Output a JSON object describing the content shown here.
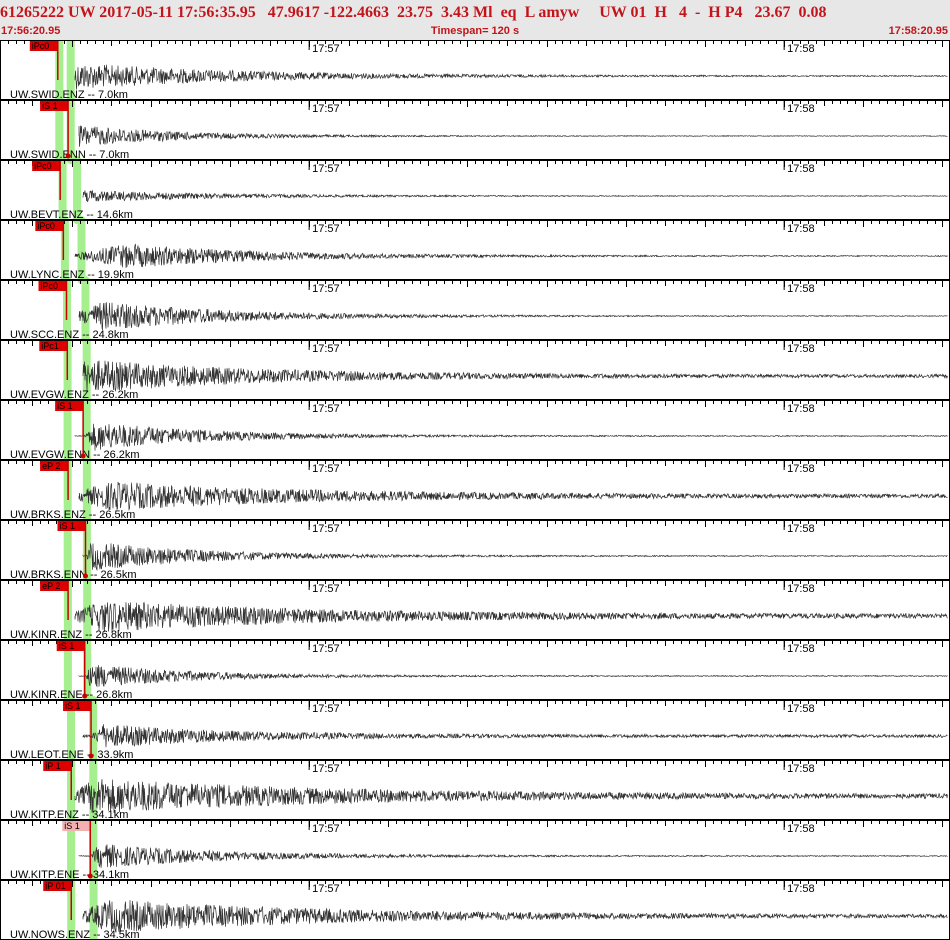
{
  "header": {
    "title": "61265222 UW 2017-05-11 17:56:35.95   47.9617 -122.4663  23.75  3.43 Ml  eq  L amyw     UW 01  H   4  -  H P4   23.67  0.08",
    "start_time": "17:56:20.95",
    "timespan": "Timespan= 120 s",
    "end_time": "17:58:20.95"
  },
  "colors": {
    "trace": "#333333",
    "pick_fill": "#dd0000",
    "pick_selected_fill": "#f2b0b0",
    "pick_line": "#c80000",
    "travel_time_band": "#a6ef8e",
    "panel_border": "#000000",
    "minute_label": "#000000"
  },
  "chart_data": {
    "type": "seismogram",
    "time_axis": {
      "start": "17:56:20.95",
      "end": "17:58:20.95",
      "span_s": 120,
      "minute_marks": [
        "17:57",
        "17:58"
      ]
    },
    "channels": [
      {
        "label": "UW.SWID.ENZ -- 7.0km",
        "pick": {
          "label": "iPc0",
          "time_s": 7.3,
          "selected": false
        },
        "signal_start_s": 7.4,
        "amplitude": 0.55,
        "peak_s": 9.5,
        "duration_s": 65,
        "noise": 0.02
      },
      {
        "label": "UW.SWID.ENN -- 7.0km",
        "pick": {
          "label": "iS 1",
          "time_s": 8.6,
          "selected": false
        },
        "signal_start_s": 8.8,
        "amplitude": 0.45,
        "peak_s": 10.0,
        "duration_s": 40,
        "noise": 0.015
      },
      {
        "label": "UW.BEVT.ENZ -- 14.6km",
        "pick": {
          "label": "iPc0",
          "time_s": 7.6,
          "selected": false
        },
        "signal_start_s": 7.7,
        "amplitude": 0.25,
        "peak_s": 10,
        "duration_s": 55,
        "noise": 0.015
      },
      {
        "label": "UW.LYNC.ENZ -- 19.9km",
        "pick": {
          "label": "iPc0",
          "time_s": 8.0,
          "selected": false
        },
        "signal_start_s": 8.1,
        "amplitude": 0.5,
        "peak_s": 16,
        "duration_s": 60,
        "noise": 0.02
      },
      {
        "label": "UW.SCC.ENZ -- 24.8km",
        "pick": {
          "label": "iPc0",
          "time_s": 8.4,
          "selected": false
        },
        "signal_start_s": 8.5,
        "amplitude": 0.6,
        "peak_s": 13,
        "duration_s": 55,
        "noise": 0.015
      },
      {
        "label": "UW.EVGW.ENZ -- 26.2km",
        "pick": {
          "label": "iPc1",
          "time_s": 8.5,
          "selected": false
        },
        "signal_start_s": 8.6,
        "amplitude": 0.65,
        "peak_s": 11,
        "duration_s": 70,
        "noise": 0.06
      },
      {
        "label": "UW.EVGW.ENN -- 26.2km",
        "pick": {
          "label": "iS 1",
          "time_s": 10.5,
          "selected": false
        },
        "signal_start_s": 10.6,
        "amplitude": 0.6,
        "peak_s": 12,
        "duration_s": 45,
        "noise": 0.02
      },
      {
        "label": "UW.BRKS.ENZ -- 26.5km",
        "pick": {
          "label": "eP 2",
          "time_s": 8.6,
          "selected": false
        },
        "signal_start_s": 8.7,
        "amplitude": 0.55,
        "peak_s": 14,
        "duration_s": 80,
        "noise": 0.07
      },
      {
        "label": "UW.BRKS.ENN -- 26.5km",
        "pick": {
          "label": "iS 1",
          "time_s": 10.8,
          "selected": false
        },
        "signal_start_s": 10.9,
        "amplitude": 0.6,
        "peak_s": 11.5,
        "duration_s": 45,
        "noise": 0.02
      },
      {
        "label": "UW.KINR.ENZ -- 26.8km",
        "pick": {
          "label": "eP 2",
          "time_s": 8.6,
          "selected": false
        },
        "signal_start_s": 8.7,
        "amplitude": 0.6,
        "peak_s": 13,
        "duration_s": 80,
        "noise": 0.09
      },
      {
        "label": "UW.KINR.ENE -- 26.8km",
        "pick": {
          "label": "iS 1",
          "time_s": 10.7,
          "selected": false
        },
        "signal_start_s": 10.8,
        "amplitude": 0.5,
        "peak_s": 11.5,
        "duration_s": 40,
        "noise": 0.02
      },
      {
        "label": "UW.LEOT.ENE -- 33.9km",
        "pick": {
          "label": "iS 1",
          "time_s": 11.5,
          "selected": false
        },
        "signal_start_s": 11.6,
        "amplitude": 0.45,
        "peak_s": 13,
        "duration_s": 50,
        "noise": 0.06
      },
      {
        "label": "UW.KITP.ENZ -- 34.1km",
        "pick": {
          "label": "iP 1",
          "time_s": 9.0,
          "selected": false
        },
        "signal_start_s": 9.1,
        "amplitude": 0.7,
        "peak_s": 12,
        "duration_s": 90,
        "noise": 0.08
      },
      {
        "label": "UW.KITP.ENE -- 34.1km",
        "pick": {
          "label": "iS 1",
          "time_s": 11.4,
          "selected": true
        },
        "signal_start_s": 11.5,
        "amplitude": 0.5,
        "peak_s": 12.5,
        "duration_s": 50,
        "noise": 0.02
      },
      {
        "label": "UW.NOWS.ENZ -- 34.5km",
        "pick": {
          "label": "iP 01",
          "time_s": 9.0,
          "selected": false
        },
        "signal_start_s": 9.1,
        "amplitude": 0.65,
        "peak_s": 14,
        "duration_s": 90,
        "noise": 0.06
      }
    ]
  }
}
